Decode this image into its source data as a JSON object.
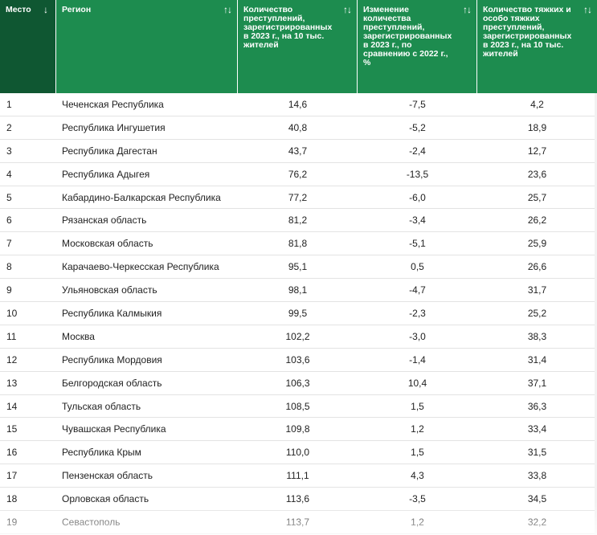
{
  "columns": [
    {
      "label": "Место",
      "sort_icon": "↓"
    },
    {
      "label": "Регион",
      "sort_icon": "↑↓"
    },
    {
      "label": "Количество преступлений, зарегистрированных в 2023 г., на 10 тыс. жителей",
      "sort_icon": "↑↓"
    },
    {
      "label": "Изменение количества преступлений, зарегистрированных в 2023 г., по сравнению с 2022 г., %",
      "sort_icon": "↑↓"
    },
    {
      "label": "Количество тяжких и особо тяжких преступлений, зарегистрированных в 2023 г., на 10 тыс. жителей",
      "sort_icon": "↑↓"
    }
  ],
  "rows": [
    {
      "rank": "1",
      "region": "Чеченская Республика",
      "crimes": "14,6",
      "change": "-7,5",
      "grave": "4,2"
    },
    {
      "rank": "2",
      "region": "Республика Ингушетия",
      "crimes": "40,8",
      "change": "-5,2",
      "grave": "18,9"
    },
    {
      "rank": "3",
      "region": "Республика Дагестан",
      "crimes": "43,7",
      "change": "-2,4",
      "grave": "12,7"
    },
    {
      "rank": "4",
      "region": "Республика Адыгея",
      "crimes": "76,2",
      "change": "-13,5",
      "grave": "23,6"
    },
    {
      "rank": "5",
      "region": "Кабардино-Балкарская Республика",
      "crimes": "77,2",
      "change": "-6,0",
      "grave": "25,7"
    },
    {
      "rank": "6",
      "region": "Рязанская область",
      "crimes": "81,2",
      "change": "-3,4",
      "grave": "26,2"
    },
    {
      "rank": "7",
      "region": "Московская область",
      "crimes": "81,8",
      "change": "-5,1",
      "grave": "25,9"
    },
    {
      "rank": "8",
      "region": "Карачаево-Черкесская Республика",
      "crimes": "95,1",
      "change": "0,5",
      "grave": "26,6"
    },
    {
      "rank": "9",
      "region": "Ульяновская область",
      "crimes": "98,1",
      "change": "-4,7",
      "grave": "31,7"
    },
    {
      "rank": "10",
      "region": "Республика Калмыкия",
      "crimes": "99,5",
      "change": "-2,3",
      "grave": "25,2"
    },
    {
      "rank": "11",
      "region": "Москва",
      "crimes": "102,2",
      "change": "-3,0",
      "grave": "38,3"
    },
    {
      "rank": "12",
      "region": "Республика Мордовия",
      "crimes": "103,6",
      "change": "-1,4",
      "grave": "31,4"
    },
    {
      "rank": "13",
      "region": "Белгородская область",
      "crimes": "106,3",
      "change": "10,4",
      "grave": "37,1"
    },
    {
      "rank": "14",
      "region": "Тульская область",
      "crimes": "108,5",
      "change": "1,5",
      "grave": "36,3"
    },
    {
      "rank": "15",
      "region": "Чувашская Республика",
      "crimes": "109,8",
      "change": "1,2",
      "grave": "33,4"
    },
    {
      "rank": "16",
      "region": "Республика Крым",
      "crimes": "110,0",
      "change": "1,5",
      "grave": "31,5"
    },
    {
      "rank": "17",
      "region": "Пензенская область",
      "crimes": "111,1",
      "change": "4,3",
      "grave": "33,8"
    },
    {
      "rank": "18",
      "region": "Орловская область",
      "crimes": "113,6",
      "change": "-3,5",
      "grave": "34,5"
    },
    {
      "rank": "19",
      "region": "Севастополь",
      "crimes": "113,7",
      "change": "1,2",
      "grave": "32,2"
    }
  ],
  "colors": {
    "header": "#1d8c4f",
    "header_active": "#0f5732",
    "row_border": "#e3e3e3"
  }
}
